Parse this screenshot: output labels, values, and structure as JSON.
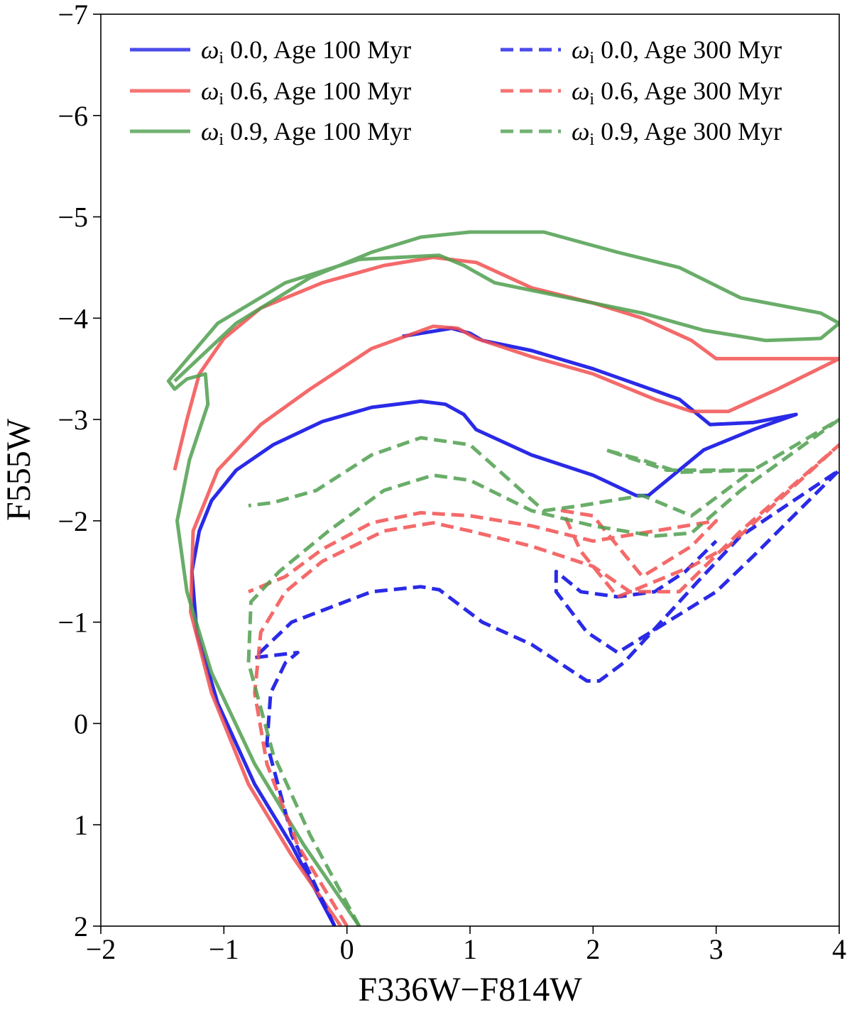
{
  "chart_data": {
    "type": "line",
    "xlabel": "F336W−F814W",
    "ylabel": "F555W",
    "xlim": [
      -2,
      4
    ],
    "ylim": [
      2,
      -7
    ],
    "y_inverted": true,
    "x_ticks": [
      -2,
      -1,
      0,
      1,
      2,
      3,
      4
    ],
    "y_ticks": [
      -7,
      -6,
      -5,
      -4,
      -3,
      -2,
      -1,
      0,
      1,
      2
    ],
    "x_tick_labels": [
      "−2",
      "−1",
      "0",
      "1",
      "2",
      "3",
      "4"
    ],
    "y_tick_labels": [
      "−7",
      "−6",
      "−5",
      "−4",
      "−3",
      "−2",
      "−1",
      "0",
      "1",
      "2"
    ],
    "grid": false,
    "legend_position": "top",
    "colors": {
      "blue": "#1f1fe6",
      "red": "#f25050",
      "green": "#4f9f4f"
    },
    "series": [
      {
        "name_symbol": "ω",
        "name_subscript": "i",
        "name": "0.0, Age 100 Myr",
        "color": "#1f1fe6",
        "style": "solid",
        "x": [
          -0.1,
          -0.45,
          -0.75,
          -1.05,
          -1.22,
          -1.26,
          -1.2,
          -1.1,
          -0.9,
          -0.6,
          -0.2,
          0.2,
          0.6,
          0.8,
          0.95,
          1.05,
          1.5,
          2.0,
          2.35,
          2.45,
          2.6,
          2.9,
          3.3,
          3.65,
          3.3,
          2.95,
          2.7,
          2.35,
          2.0,
          1.5,
          1.1,
          1.0,
          0.85,
          0.6,
          0.45
        ],
        "y": [
          2.0,
          1.2,
          0.6,
          -0.2,
          -0.9,
          -1.5,
          -1.9,
          -2.2,
          -2.5,
          -2.75,
          -2.98,
          -3.12,
          -3.18,
          -3.15,
          -3.05,
          -2.9,
          -2.65,
          -2.45,
          -2.25,
          -2.25,
          -2.4,
          -2.7,
          -2.9,
          -3.05,
          -2.97,
          -2.95,
          -3.2,
          -3.35,
          -3.5,
          -3.68,
          -3.78,
          -3.85,
          -3.9,
          -3.85,
          -3.82
        ]
      },
      {
        "name_symbol": "ω",
        "name_subscript": "i",
        "name": "0.6, Age 100 Myr",
        "color": "#f25050",
        "style": "solid",
        "x": [
          -0.05,
          -0.45,
          -0.8,
          -1.1,
          -1.27,
          -1.25,
          -1.05,
          -0.7,
          -0.3,
          0.2,
          0.7,
          0.9,
          1.05,
          1.5,
          2.0,
          2.5,
          2.8,
          3.1,
          3.5,
          4.0,
          3.6,
          3.0,
          2.8,
          2.4,
          2.0,
          1.5,
          1.05,
          0.7,
          0.3,
          -0.2,
          -0.7,
          -1.0,
          -1.2,
          -1.3,
          -1.4
        ],
        "y": [
          2.0,
          1.3,
          0.6,
          -0.3,
          -1.1,
          -1.9,
          -2.5,
          -2.95,
          -3.3,
          -3.7,
          -3.92,
          -3.9,
          -3.8,
          -3.62,
          -3.45,
          -3.2,
          -3.08,
          -3.08,
          -3.3,
          -3.6,
          -3.6,
          -3.6,
          -3.78,
          -4.0,
          -4.15,
          -4.3,
          -4.55,
          -4.6,
          -4.52,
          -4.35,
          -4.1,
          -3.8,
          -3.45,
          -3.0,
          -2.5
        ]
      },
      {
        "name_symbol": "ω",
        "name_subscript": "i",
        "name": "0.9, Age 100 Myr",
        "color": "#4f9f4f",
        "style": "solid",
        "x": [
          0.1,
          -0.35,
          -0.75,
          -1.1,
          -1.3,
          -1.38,
          -1.28,
          -1.13,
          -1.15,
          -1.3,
          -1.4,
          -1.45,
          -1.05,
          -0.5,
          0.1,
          0.75,
          0.95,
          1.2,
          1.8,
          2.4,
          2.9,
          3.4,
          3.85,
          4.0,
          3.85,
          3.2,
          2.7,
          2.2,
          1.6,
          1.0,
          0.6,
          0.2,
          -0.3,
          -0.9,
          -1.4
        ],
        "y": [
          2.0,
          1.2,
          0.4,
          -0.5,
          -1.3,
          -2.0,
          -2.6,
          -3.15,
          -3.45,
          -3.4,
          -3.3,
          -3.38,
          -3.95,
          -4.35,
          -4.58,
          -4.62,
          -4.52,
          -4.35,
          -4.2,
          -4.05,
          -3.88,
          -3.78,
          -3.8,
          -3.95,
          -4.05,
          -4.2,
          -4.5,
          -4.65,
          -4.85,
          -4.85,
          -4.8,
          -4.65,
          -4.4,
          -3.95,
          -3.38
        ]
      },
      {
        "name_symbol": "ω",
        "name_subscript": "i",
        "name": "0.0, Age 300 Myr",
        "color": "#1f1fe6",
        "style": "dashed",
        "x": [
          -0.1,
          -0.45,
          -0.65,
          -0.62,
          -0.5,
          -0.4,
          -0.75,
          -0.45,
          0.2,
          0.6,
          0.75,
          1.1,
          1.5,
          1.95,
          2.05,
          2.25,
          2.55,
          2.85,
          3.2,
          4.0,
          3.3,
          3.0,
          2.6,
          2.2,
          1.95,
          1.7,
          1.7,
          1.9,
          2.2,
          2.5,
          2.75,
          3.0
        ],
        "y": [
          2.0,
          1.1,
          0.2,
          -0.3,
          -0.6,
          -0.7,
          -0.65,
          -1.0,
          -1.3,
          -1.35,
          -1.32,
          -1.0,
          -0.78,
          -0.42,
          -0.42,
          -0.6,
          -1.0,
          -1.4,
          -1.85,
          -2.5,
          -1.65,
          -1.3,
          -1.0,
          -0.7,
          -0.9,
          -1.3,
          -1.5,
          -1.3,
          -1.25,
          -1.3,
          -1.5,
          -1.8
        ]
      },
      {
        "name_symbol": "ω",
        "name_subscript": "i",
        "name": "0.6, Age 300 Myr",
        "color": "#f25050",
        "style": "dashed",
        "x": [
          0.0,
          -0.4,
          -0.65,
          -0.75,
          -0.7,
          -0.5,
          -0.2,
          0.3,
          0.7,
          1.0,
          1.5,
          2.0,
          2.3,
          2.7,
          3.2,
          4.0,
          3.1,
          2.8,
          2.2,
          1.9,
          1.75,
          2.0,
          2.4,
          2.8,
          3.0,
          2.5,
          2.0,
          1.5,
          1.0,
          0.6,
          0.2,
          -0.2,
          -0.5,
          -0.8
        ],
        "y": [
          2.0,
          1.2,
          0.4,
          -0.3,
          -0.9,
          -1.3,
          -1.6,
          -1.9,
          -1.98,
          -1.9,
          -1.75,
          -1.55,
          -1.3,
          -1.3,
          -1.9,
          -2.75,
          -1.75,
          -1.55,
          -1.25,
          -1.7,
          -2.1,
          -2.05,
          -1.45,
          -1.75,
          -2.0,
          -1.9,
          -1.8,
          -1.95,
          -2.05,
          -2.08,
          -1.98,
          -1.72,
          -1.45,
          -1.3
        ]
      },
      {
        "name_symbol": "ω",
        "name_subscript": "i",
        "name": "0.9, Age 300 Myr",
        "color": "#4f9f4f",
        "style": "dashed",
        "x": [
          0.1,
          -0.3,
          -0.6,
          -0.8,
          -0.78,
          -0.55,
          -0.15,
          0.3,
          0.7,
          1.0,
          1.5,
          2.0,
          2.5,
          2.8,
          3.2,
          4.0,
          3.3,
          2.7,
          2.4,
          2.1,
          2.6,
          3.3,
          2.8,
          2.4,
          1.9,
          1.6,
          1.0,
          0.6,
          0.2,
          -0.25,
          -0.6,
          -0.8
        ],
        "y": [
          2.0,
          1.1,
          0.3,
          -0.6,
          -1.2,
          -1.5,
          -1.9,
          -2.3,
          -2.45,
          -2.4,
          -2.1,
          -1.95,
          -1.85,
          -1.88,
          -2.3,
          -3.0,
          -2.5,
          -2.48,
          -2.6,
          -2.7,
          -2.5,
          -2.5,
          -2.05,
          -2.25,
          -2.15,
          -2.1,
          -2.75,
          -2.82,
          -2.65,
          -2.3,
          -2.18,
          -2.15
        ]
      }
    ]
  }
}
